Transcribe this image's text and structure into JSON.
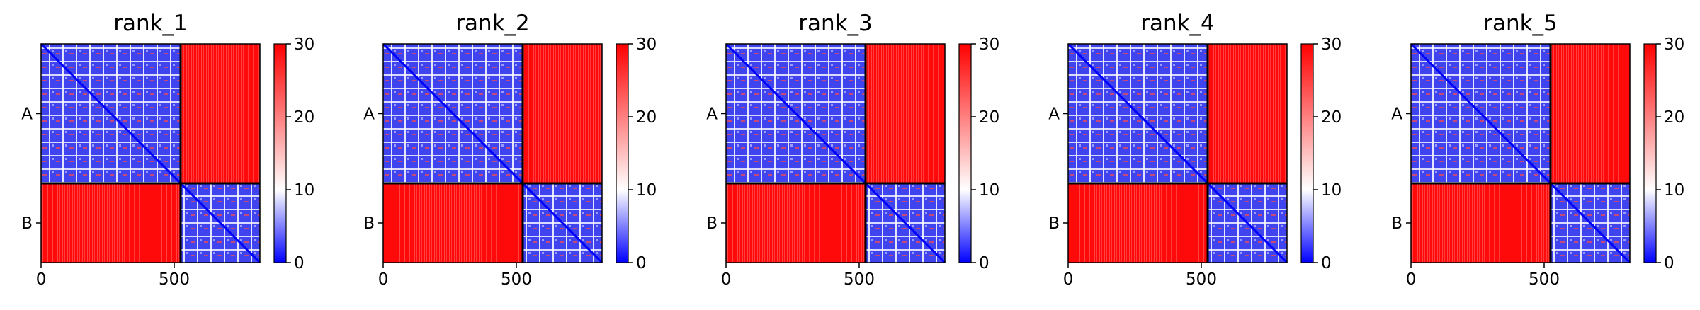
{
  "chart_data": [
    {
      "type": "heatmap",
      "title": "rank_1",
      "x_range": [
        0,
        830
      ],
      "y_range": [
        0,
        830
      ],
      "chain_boundary": 525,
      "chains": [
        "A",
        "B"
      ],
      "x_ticks": [
        0,
        500
      ],
      "colorbar": {
        "min": 0,
        "max": 30,
        "ticks": [
          0,
          10,
          20,
          30
        ],
        "colormap": [
          "#0000ff",
          "#ffffff",
          "#ff0000"
        ]
      },
      "intra_chain_mean": 10,
      "inter_chain_mean": 28
    },
    {
      "type": "heatmap",
      "title": "rank_2",
      "x_range": [
        0,
        830
      ],
      "y_range": [
        0,
        830
      ],
      "chain_boundary": 525,
      "chains": [
        "A",
        "B"
      ],
      "x_ticks": [
        0,
        500
      ],
      "colorbar": {
        "min": 0,
        "max": 30,
        "ticks": [
          0,
          10,
          20,
          30
        ],
        "colormap": [
          "#0000ff",
          "#ffffff",
          "#ff0000"
        ]
      },
      "intra_chain_mean": 10,
      "inter_chain_mean": 28
    },
    {
      "type": "heatmap",
      "title": "rank_3",
      "x_range": [
        0,
        830
      ],
      "y_range": [
        0,
        830
      ],
      "chain_boundary": 525,
      "chains": [
        "A",
        "B"
      ],
      "x_ticks": [
        0,
        500
      ],
      "colorbar": {
        "min": 0,
        "max": 30,
        "ticks": [
          0,
          10,
          20,
          30
        ],
        "colormap": [
          "#0000ff",
          "#ffffff",
          "#ff0000"
        ]
      },
      "intra_chain_mean": 10,
      "inter_chain_mean": 29
    },
    {
      "type": "heatmap",
      "title": "rank_4",
      "x_range": [
        0,
        830
      ],
      "y_range": [
        0,
        830
      ],
      "chain_boundary": 525,
      "chains": [
        "A",
        "B"
      ],
      "x_ticks": [
        0,
        500
      ],
      "colorbar": {
        "min": 0,
        "max": 30,
        "ticks": [
          0,
          10,
          20,
          30
        ],
        "colormap": [
          "#0000ff",
          "#ffffff",
          "#ff0000"
        ]
      },
      "intra_chain_mean": 10,
      "inter_chain_mean": 29
    },
    {
      "type": "heatmap",
      "title": "rank_5",
      "x_range": [
        0,
        830
      ],
      "y_range": [
        0,
        830
      ],
      "chain_boundary": 525,
      "chains": [
        "A",
        "B"
      ],
      "x_ticks": [
        0,
        500
      ],
      "colorbar": {
        "min": 0,
        "max": 30,
        "ticks": [
          0,
          10,
          20,
          30
        ],
        "colormap": [
          "#0000ff",
          "#ffffff",
          "#ff0000"
        ]
      },
      "intra_chain_mean": 10,
      "inter_chain_mean": 29
    }
  ]
}
